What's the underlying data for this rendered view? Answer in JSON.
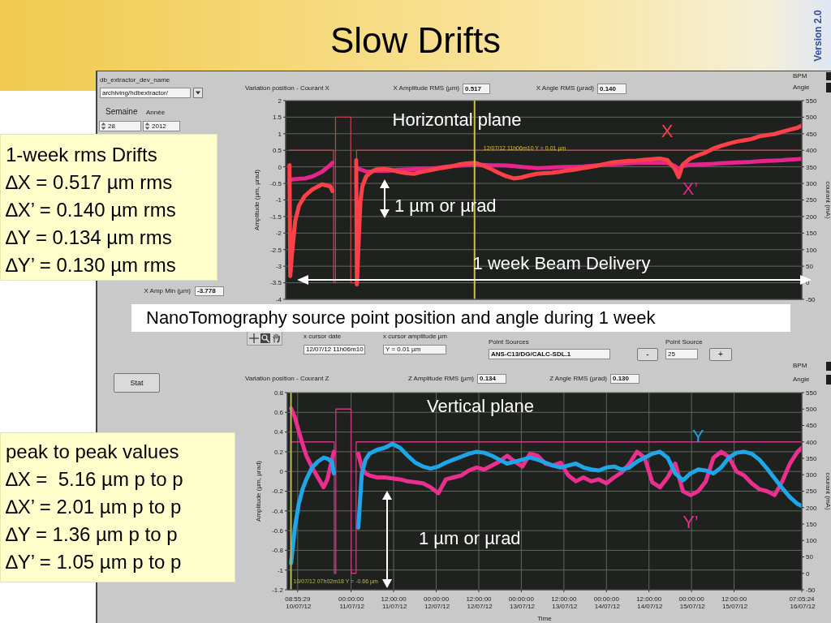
{
  "chart_data": [
    {
      "type": "other",
      "title": "Slow Drifts",
      "annotations": [
        "Version 2.0"
      ]
    },
    {
      "type": "other",
      "title": "1-week rms Drifts",
      "annotations": [
        "∆X = 0.517 µm rms",
        "∆X’ = 0.140 µm rms",
        "∆Y = 0.134 µm rms",
        "∆Y’ = 0.130 µm rms"
      ]
    },
    {
      "type": "line",
      "title": "Variation position - Courant X",
      "ylabel": "Amplitude (µm, µrad)",
      "y2label": "courant (mA)",
      "grid": true,
      "tick_labels": "y",
      "xlim": [
        "2012-07-10T06:00",
        "2012-07-16T07:05:24"
      ],
      "xticks": [
        {
          "value": "2012-07-10T08:55:29",
          "label": null
        },
        {
          "value": "2012-07-11T00:00",
          "label": null
        },
        {
          "value": "2012-07-11T12:00",
          "label": null
        },
        {
          "value": "2012-07-12T00:00",
          "label": null
        },
        {
          "value": "2012-07-12T12:00",
          "label": null
        },
        {
          "value": "2012-07-13T00:00",
          "label": null
        },
        {
          "value": "2012-07-13T12:00",
          "label": null
        },
        {
          "value": "2012-07-14T00:00",
          "label": null
        },
        {
          "value": "2012-07-14T12:00",
          "label": null
        },
        {
          "value": "2012-07-15T00:00",
          "label": null
        },
        {
          "value": "2012-07-15T12:00",
          "label": null
        },
        {
          "value": "2012-07-16T07:05:24",
          "label": null
        }
      ],
      "ylim": [
        -4,
        2
      ],
      "yticks": [
        -4,
        -3.5,
        -3,
        -2.5,
        -2,
        -1.5,
        -1,
        -0.5,
        0,
        0.5,
        1,
        1.5,
        2
      ],
      "y2lim": [
        -50,
        550
      ],
      "y2ticks": [
        -50,
        0,
        50,
        100,
        150,
        200,
        250,
        300,
        350,
        400,
        450,
        500,
        550
      ],
      "x": [
        "2012-07-10T07:04",
        "2012-07-10T07:17",
        "2012-07-10T07:49",
        "2012-07-10T08:41",
        "2012-07-10T09:46",
        "2012-07-10T11:23",
        "2012-07-10T13:32",
        "2012-07-10T16:14",
        "2012-07-10T18:36",
        "2012-07-10T19:08",
        "2012-07-10T22:42",
        "2012-07-11T01:50",
        "2012-07-11T02:02",
        "2012-07-11T02:35",
        "2012-07-11T03:01",
        "2012-07-11T03:33",
        "2012-07-11T04:38",
        "2012-07-11T06:15",
        "2012-07-11T07:20",
        "2012-07-11T09:29",
        "2012-07-11T11:38",
        "2012-07-11T13:48",
        "2012-07-11T15:57",
        "2012-07-11T18:06",
        "2012-07-11T20:16",
        "2012-07-11T22:25",
        "2012-07-12T00:35",
        "2012-07-12T02:44",
        "2012-07-12T04:53",
        "2012-07-12T07:03",
        "2012-07-12T09:12",
        "2012-07-12T11:21",
        "2012-07-12T13:31",
        "2012-07-12T15:40",
        "2012-07-12T17:49",
        "2012-07-12T19:59",
        "2012-07-12T22:08",
        "2012-07-13T00:17",
        "2012-07-13T02:27",
        "2012-07-13T04:36",
        "2012-07-13T06:46",
        "2012-07-13T08:55",
        "2012-07-13T11:04",
        "2012-07-13T13:14",
        "2012-07-13T15:23",
        "2012-07-13T17:32",
        "2012-07-13T19:42",
        "2012-07-13T21:51",
        "2012-07-14T00:01",
        "2012-07-14T02:10",
        "2012-07-14T04:19",
        "2012-07-14T06:29",
        "2012-07-14T08:38",
        "2012-07-14T10:47",
        "2012-07-14T12:56",
        "2012-07-14T15:06",
        "2012-07-14T17:16",
        "2012-07-14T19:25",
        "2012-07-14T20:29",
        "2012-07-14T21:34",
        "2012-07-14T23:43",
        "2012-07-15T01:53",
        "2012-07-15T04:02",
        "2012-07-15T06:11",
        "2012-07-15T08:21",
        "2012-07-15T10:30",
        "2012-07-15T12:40",
        "2012-07-15T14:49",
        "2012-07-15T16:58",
        "2012-07-15T19:08",
        "2012-07-15T21:17",
        "2012-07-15T23:26",
        "2012-07-16T01:36",
        "2012-07-16T03:45",
        "2012-07-16T05:55",
        "2012-07-16T07:05"
      ],
      "series": [
        {
          "name": "X",
          "color": "#ff4048",
          "values": [
            0.05,
            -3.3,
            -2.58,
            -1.64,
            -1.17,
            -0.88,
            -0.68,
            -0.53,
            -0.59,
            -0.73,
            null,
            0.2,
            -3.55,
            -2.1,
            -1.06,
            -0.59,
            -0.29,
            -0.14,
            -0.08,
            -0.06,
            -0.09,
            -0.15,
            -0.19,
            -0.21,
            -0.15,
            -0.11,
            -0.06,
            -0.02,
            0.02,
            0.08,
            0.11,
            0.12,
            0.04,
            -0.06,
            -0.18,
            -0.28,
            -0.35,
            -0.32,
            -0.26,
            -0.21,
            -0.19,
            -0.18,
            -0.15,
            -0.11,
            -0.08,
            -0.04,
            0,
            0.04,
            0.09,
            0.14,
            0.16,
            0.18,
            0.19,
            0.21,
            0.23,
            0.25,
            0.21,
            -0.06,
            -0.31,
            0.06,
            0.25,
            0.35,
            0.43,
            0.55,
            0.63,
            0.7,
            0.76,
            0.8,
            0.84,
            0.92,
            0.96,
            0.99,
            1.06,
            1.12,
            1.18,
            1.25
          ]
        },
        {
          "name": "X’",
          "color": "#e4258c",
          "values": [
            -0.38,
            -0.4,
            -0.38,
            -0.37,
            -0.36,
            -0.35,
            -0.29,
            -0.15,
            0.06,
            0.12,
            null,
            null,
            null,
            -0.06,
            -0.08,
            -0.1,
            -0.14,
            -0.14,
            -0.12,
            -0.12,
            -0.11,
            -0.09,
            -0.08,
            -0.07,
            -0.06,
            -0.05,
            -0.03,
            0,
            0.02,
            0.04,
            0.05,
            0.06,
            0.06,
            0.05,
            0.05,
            0.04,
            0.02,
            0,
            -0.02,
            -0.04,
            -0.03,
            -0.02,
            -0.01,
            0,
            0,
            0.01,
            0.03,
            0.05,
            0.07,
            0.08,
            0.09,
            0.11,
            0.12,
            0.12,
            0.12,
            0.12,
            0.12,
            0.02,
            -0.06,
            0.02,
            0.06,
            0.07,
            0.08,
            0.09,
            0.11,
            0.12,
            0.13,
            0.14,
            0.15,
            0.17,
            0.18,
            0.19,
            0.2,
            0.22,
            0.23,
            0.24
          ]
        },
        {
          "axis": "y2",
          "color": "#b8454e",
          "x": [
            "2012-07-10T07:04",
            "2012-07-10T19:28",
            "2012-07-10T19:29",
            "2012-07-10T20:00",
            "2012-07-10T20:01",
            "2012-07-11T00:19",
            "2012-07-11T00:20",
            "2012-07-11T01:55",
            "2012-07-11T01:56",
            "2012-07-16T07:05"
          ],
          "values": [
            400,
            400,
            0,
            0,
            500,
            500,
            0,
            0,
            400,
            400
          ]
        }
      ],
      "ref_lines": [
        {
          "axis": "x",
          "value": "2012-07-12T11:06:10",
          "label": "12/07/12 11h06m10 Y = 0.01 µm",
          "color": "#c8c43c"
        }
      ],
      "annotations": [
        "Horizontal plane",
        "1 µm or µrad",
        "1 week Beam Delivery",
        "NanoTomography source point position and angle during 1 week",
        "db_extractor_dev_name",
        "archiving/hdbextractor/",
        "Semaine",
        "Année",
        "28",
        "2012",
        "X Amplitude RMS (µm)",
        "0.517",
        "X Angle RMS (µrad)",
        "0.140",
        "BPM",
        "Angle",
        "X Amp Min (µm)",
        "-3.778",
        "x cursor date",
        "12/07/12 11h06m10",
        "x cursor amplitude µm",
        "Y = 0.01 µm",
        "Point Sources",
        "ANS-C13/DG/CALC-SDL.1",
        "-",
        "Point Source",
        "25",
        "+"
      ]
    },
    {
      "type": "other",
      "title": "peak to peak values",
      "annotations": [
        "∆X =  5.16 µm p to p",
        "∆X’ = 2.01 µm p to p",
        "∆Y = 1.36 µm p to p",
        "∆Y’ = 1.05 µm p to p"
      ]
    },
    {
      "type": "line",
      "title": "Variation position - Courant Z",
      "xlabel": "Time",
      "ylabel": "Amplitude (µm, µrad)",
      "y2label": "courant (mA)",
      "grid": true,
      "xlim": [
        "2012-07-10T06:00",
        "2012-07-16T07:05:24"
      ],
      "xticks": [
        {
          "value": "2012-07-10T08:55:29",
          "label": "08:55:29 10/07/12"
        },
        {
          "value": "2012-07-11T00:00",
          "label": "00:00:00 11/07/12"
        },
        {
          "value": "2012-07-11T12:00",
          "label": "12:00:00 11/07/12"
        },
        {
          "value": "2012-07-12T00:00",
          "label": "00:00:00 12/07/12"
        },
        {
          "value": "2012-07-12T12:00",
          "label": "12:00:00 12/07/12"
        },
        {
          "value": "2012-07-13T00:00",
          "label": "00:00:00 13/07/12"
        },
        {
          "value": "2012-07-13T12:00",
          "label": "12:00:00 13/07/12"
        },
        {
          "value": "2012-07-14T00:00",
          "label": "00:00:00 14/07/12"
        },
        {
          "value": "2012-07-14T12:00",
          "label": "12:00:00 14/07/12"
        },
        {
          "value": "2012-07-15T00:00",
          "label": "00:00:00 15/07/12"
        },
        {
          "value": "2012-07-15T12:00",
          "label": "12:00:00 15/07/12"
        },
        {
          "value": "2012-07-16T07:05:24",
          "label": "07:05:24 16/07/12"
        }
      ],
      "ylim": [
        -1.2,
        0.8
      ],
      "yticks": [
        -1.2,
        -1,
        -0.8,
        -0.6,
        -0.4,
        -0.2,
        0,
        0.2,
        0.4,
        0.6,
        0.8
      ],
      "y2lim": [
        -50,
        550
      ],
      "y2ticks": [
        -50,
        0,
        50,
        100,
        150,
        200,
        250,
        300,
        350,
        400,
        450,
        500,
        550
      ],
      "x": [
        "2012-07-10T07:04",
        "2012-07-10T08:09",
        "2012-07-10T09:14",
        "2012-07-10T10:18",
        "2012-07-10T11:23",
        "2012-07-10T13:00",
        "2012-07-10T14:37",
        "2012-07-10T16:14",
        "2012-07-10T17:19",
        "2012-07-10T18:36",
        "2012-07-10T19:08",
        "2012-07-10T22:42",
        "2012-07-11T02:02",
        "2012-07-11T03:01",
        "2012-07-11T04:05",
        "2012-07-11T05:10",
        "2012-07-11T07:20",
        "2012-07-11T09:29",
        "2012-07-11T11:38",
        "2012-07-11T13:48",
        "2012-07-11T15:57",
        "2012-07-11T18:06",
        "2012-07-11T20:16",
        "2012-07-11T22:25",
        "2012-07-12T00:35",
        "2012-07-12T02:44",
        "2012-07-12T04:53",
        "2012-07-12T07:03",
        "2012-07-12T09:12",
        "2012-07-12T11:21",
        "2012-07-12T13:31",
        "2012-07-12T15:40",
        "2012-07-12T17:49",
        "2012-07-12T19:59",
        "2012-07-12T22:08",
        "2012-07-13T00:17",
        "2012-07-13T02:27",
        "2012-07-13T04:36",
        "2012-07-13T06:46",
        "2012-07-13T08:55",
        "2012-07-13T11:04",
        "2012-07-13T13:14",
        "2012-07-13T15:23",
        "2012-07-13T17:32",
        "2012-07-13T19:42",
        "2012-07-13T21:51",
        "2012-07-14T00:01",
        "2012-07-14T02:10",
        "2012-07-14T04:19",
        "2012-07-14T06:29",
        "2012-07-14T08:38",
        "2012-07-14T10:47",
        "2012-07-14T12:56",
        "2012-07-14T15:06",
        "2012-07-14T17:16",
        "2012-07-14T19:25",
        "2012-07-14T21:34",
        "2012-07-14T23:43",
        "2012-07-15T01:53",
        "2012-07-15T04:02",
        "2012-07-15T06:11",
        "2012-07-15T08:21",
        "2012-07-15T10:30",
        "2012-07-15T12:40",
        "2012-07-15T14:49",
        "2012-07-15T16:58",
        "2012-07-15T19:08",
        "2012-07-15T21:17",
        "2012-07-15T23:26",
        "2012-07-16T01:36",
        "2012-07-16T03:45",
        "2012-07-16T05:55",
        "2012-07-16T07:05"
      ],
      "series": [
        {
          "name": "Y",
          "color": "#1fa6e8",
          "values": [
            -0.93,
            -0.57,
            -0.33,
            -0.18,
            -0.08,
            0.04,
            0.1,
            0.14,
            0.13,
            0.1,
            -0.02,
            null,
            -0.57,
            -0.02,
            0.12,
            0.18,
            0.22,
            0.24,
            0.28,
            0.24,
            0.16,
            0.09,
            0.05,
            0.03,
            0.05,
            0.09,
            0.12,
            0.15,
            0.18,
            0.2,
            0.19,
            0.16,
            0.12,
            0.08,
            0.1,
            0.12,
            0.14,
            0.12,
            0.09,
            0.06,
            0.04,
            0.06,
            0.08,
            0.04,
            0.02,
            0.01,
            0.04,
            0.05,
            0.02,
            0.04,
            0.1,
            0.14,
            0.18,
            0.2,
            0.14,
            -0.02,
            -0.09,
            -0.02,
            0.02,
            0.01,
            -0.02,
            0.04,
            0.14,
            0.19,
            0.2,
            0.18,
            0.12,
            0.03,
            -0.07,
            -0.17,
            -0.26,
            -0.33,
            -0.35
          ]
        },
        {
          "name": "Y’",
          "color": "#ea2f8e",
          "values": [
            0.64,
            0.55,
            0.41,
            0.28,
            0.16,
            0.04,
            -0.06,
            -0.16,
            -0.08,
            0.12,
            0.2,
            null,
            0.18,
            0.04,
            -0.02,
            -0.04,
            -0.06,
            -0.06,
            -0.07,
            -0.08,
            -0.1,
            -0.11,
            -0.12,
            -0.16,
            -0.22,
            -0.08,
            -0.06,
            -0.04,
            0.01,
            0.04,
            0.02,
            0.06,
            0.1,
            0.16,
            0.1,
            0.05,
            0.18,
            0.16,
            0.08,
            0.06,
            0.09,
            -0.04,
            -0.1,
            -0.06,
            -0.1,
            -0.08,
            -0.12,
            -0.06,
            -0.01,
            0.08,
            0.2,
            0.14,
            -0.11,
            -0.16,
            -0.06,
            0.08,
            -0.2,
            -0.24,
            -0.2,
            -0.1,
            0.14,
            0.2,
            0.15,
            0,
            -0.04,
            -0.12,
            -0.18,
            -0.2,
            -0.24,
            -0.1,
            0.08,
            0.2,
            0.24
          ]
        },
        {
          "axis": "y2",
          "color": "#c83a80",
          "x": [
            "2012-07-10T07:04",
            "2012-07-10T19:15",
            "2012-07-10T19:16",
            "2012-07-10T19:41",
            "2012-07-10T19:42",
            "2012-07-10T23:59",
            "2012-07-11T00:00",
            "2012-07-11T01:24",
            "2012-07-11T01:25",
            "2012-07-16T07:05"
          ],
          "values": [
            400,
            400,
            0,
            0,
            500,
            500,
            0,
            0,
            400,
            400
          ]
        }
      ],
      "ref_lines": [
        {
          "axis": "x",
          "value": "2012-07-10T07:02:18",
          "label": "10/07/12 07h02m18 Y = -0.66 µm",
          "color": "#b8b85a"
        }
      ],
      "annotations": [
        "Vertical plane",
        "1 µm or µrad",
        "Z Amplitude RMS (µm)",
        "0.134",
        "Z Angle RMS (µrad)",
        "0.130",
        "BPM",
        "Angle",
        "Stat"
      ]
    }
  ]
}
